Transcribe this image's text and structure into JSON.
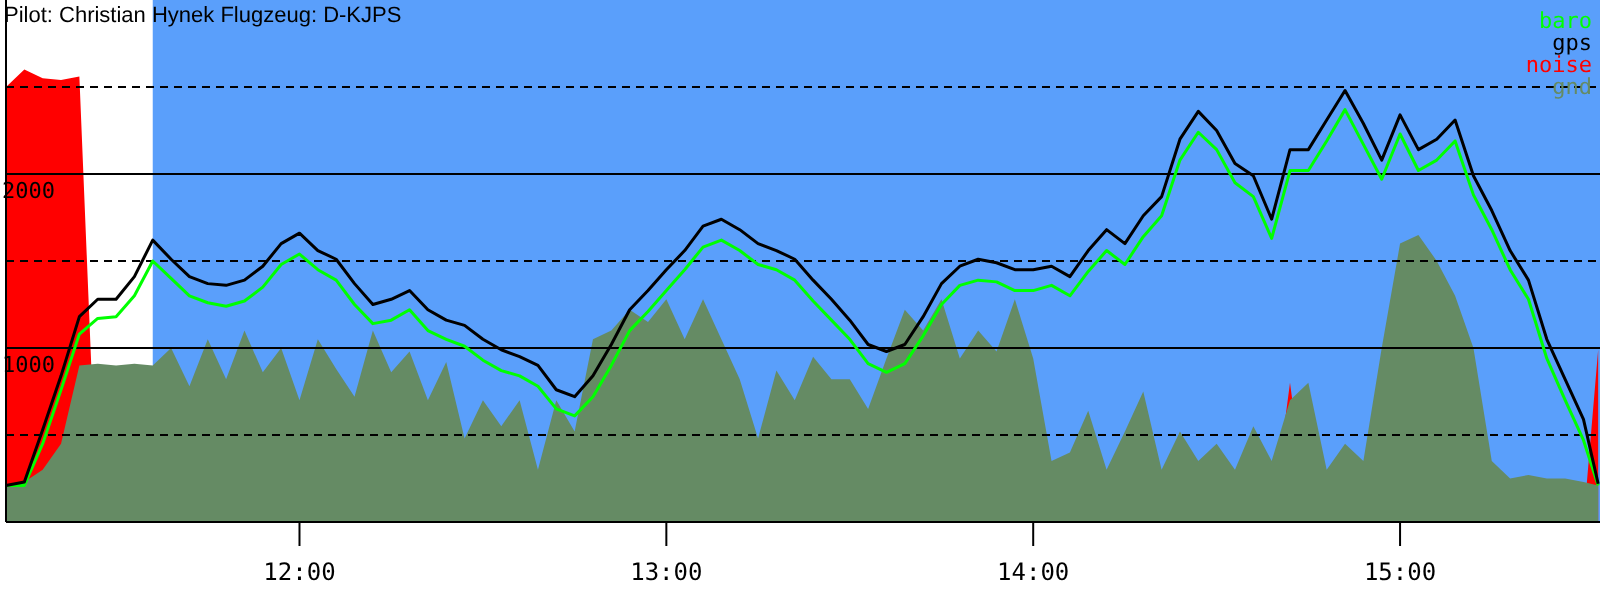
{
  "chart_data": {
    "type": "line",
    "title": "Pilot: Christian Hynek Flugzeug: D-KJPS",
    "x": [
      11.2,
      11.25,
      11.3,
      11.35,
      11.4,
      11.45,
      11.5,
      11.55,
      11.6,
      11.65,
      11.7,
      11.75,
      11.8,
      11.85,
      11.9,
      11.95,
      12.0,
      12.05,
      12.1,
      12.15,
      12.2,
      12.25,
      12.3,
      12.35,
      12.4,
      12.45,
      12.5,
      12.55,
      12.6,
      12.65,
      12.7,
      12.75,
      12.8,
      12.85,
      12.9,
      12.95,
      13.0,
      13.05,
      13.1,
      13.15,
      13.2,
      13.25,
      13.3,
      13.35,
      13.4,
      13.45,
      13.5,
      13.55,
      13.6,
      13.65,
      13.7,
      13.75,
      13.8,
      13.85,
      13.9,
      13.95,
      14.0,
      14.05,
      14.1,
      14.15,
      14.2,
      14.25,
      14.3,
      14.35,
      14.4,
      14.45,
      14.5,
      14.55,
      14.6,
      14.65,
      14.7,
      14.75,
      14.8,
      14.85,
      14.9,
      14.95,
      15.0,
      15.05,
      15.1,
      15.15,
      15.2,
      15.25,
      15.3,
      15.35,
      15.4,
      15.45,
      15.5,
      15.54
    ],
    "series": [
      {
        "name": "baro",
        "color": "#00ff00",
        "values": [
          210,
          210,
          450,
          760,
          1080,
          1170,
          1180,
          1300,
          1500,
          1400,
          1300,
          1260,
          1240,
          1270,
          1350,
          1480,
          1540,
          1450,
          1390,
          1250,
          1140,
          1160,
          1220,
          1100,
          1050,
          1010,
          930,
          870,
          840,
          780,
          650,
          610,
          720,
          900,
          1100,
          1210,
          1330,
          1450,
          1580,
          1620,
          1560,
          1480,
          1450,
          1390,
          1270,
          1160,
          1050,
          910,
          860,
          910,
          1070,
          1250,
          1360,
          1390,
          1380,
          1330,
          1330,
          1360,
          1300,
          1440,
          1560,
          1480,
          1640,
          1760,
          2080,
          2240,
          2140,
          1950,
          1870,
          1630,
          2020,
          2020,
          2190,
          2370,
          2170,
          1970,
          2230,
          2020,
          2080,
          2190,
          1880,
          1680,
          1450,
          1280,
          940,
          700,
          470,
          210
        ]
      },
      {
        "name": "gps",
        "color": "#000000",
        "values": [
          210,
          230,
          530,
          840,
          1180,
          1280,
          1280,
          1410,
          1620,
          1510,
          1410,
          1370,
          1360,
          1390,
          1470,
          1600,
          1660,
          1560,
          1510,
          1370,
          1250,
          1280,
          1330,
          1220,
          1160,
          1130,
          1050,
          990,
          950,
          900,
          760,
          720,
          840,
          1020,
          1220,
          1330,
          1450,
          1560,
          1700,
          1740,
          1680,
          1600,
          1560,
          1510,
          1390,
          1280,
          1160,
          1020,
          980,
          1020,
          1180,
          1370,
          1470,
          1510,
          1490,
          1450,
          1450,
          1470,
          1410,
          1560,
          1680,
          1600,
          1760,
          1870,
          2200,
          2360,
          2250,
          2060,
          1990,
          1740,
          2140,
          2140,
          2310,
          2480,
          2290,
          2080,
          2340,
          2140,
          2200,
          2310,
          1990,
          1790,
          1560,
          1390,
          1050,
          820,
          590,
          220
        ]
      },
      {
        "name": "noise",
        "type": "area",
        "color": "#ff0000",
        "values": [
          2500,
          2600,
          2550,
          2540,
          2560,
          0,
          0,
          0,
          0,
          0,
          0,
          0,
          0,
          0,
          0,
          0,
          0,
          0,
          0,
          0,
          0,
          0,
          0,
          0,
          0,
          0,
          0,
          0,
          0,
          0,
          0,
          0,
          0,
          0,
          0,
          0,
          0,
          0,
          0,
          0,
          0,
          0,
          0,
          0,
          0,
          0,
          0,
          0,
          0,
          0,
          0,
          0,
          0,
          0,
          0,
          0,
          0,
          0,
          0,
          0,
          0,
          0,
          0,
          0,
          0,
          0,
          0,
          0,
          0,
          0,
          800,
          0,
          0,
          0,
          0,
          0,
          0,
          0,
          0,
          0,
          0,
          0,
          0,
          0,
          0,
          0,
          0,
          990
        ]
      },
      {
        "name": "gnd",
        "type": "area",
        "color": "#658b64",
        "values": [
          210,
          230,
          300,
          450,
          900,
          910,
          900,
          910,
          900,
          1000,
          780,
          1050,
          820,
          1100,
          860,
          1000,
          700,
          1050,
          880,
          720,
          1100,
          860,
          980,
          700,
          920,
          480,
          700,
          550,
          700,
          300,
          700,
          520,
          1050,
          1100,
          1220,
          1150,
          1280,
          1050,
          1280,
          1050,
          820,
          480,
          870,
          700,
          950,
          820,
          820,
          650,
          940,
          1220,
          1100,
          1280,
          940,
          1100,
          980,
          1280,
          940,
          350,
          400,
          640,
          300,
          520,
          750,
          300,
          520,
          350,
          450,
          300,
          550,
          350,
          700,
          800,
          300,
          450,
          350,
          1000,
          1600,
          1650,
          1500,
          1300,
          1000,
          350,
          250,
          270,
          250,
          250,
          230,
          210
        ]
      }
    ],
    "xlim": [
      11.2,
      15.545
    ],
    "xticks": [
      {
        "value": 12,
        "label": "12:00"
      },
      {
        "value": 13,
        "label": "13:00"
      },
      {
        "value": 14,
        "label": "14:00"
      },
      {
        "value": 15,
        "label": "15:00"
      }
    ],
    "ylim": [
      0,
      3000
    ],
    "yticks": [
      {
        "value": 500,
        "label": null
      },
      1000,
      {
        "value": 1500,
        "label": null
      },
      2000,
      {
        "value": 2500,
        "label": null
      }
    ],
    "grid": "y",
    "legend": "top right",
    "bands": [
      {
        "axis": "x",
        "from": 11.6,
        "to": 15.545,
        "color": "#5a9ffb"
      }
    ]
  }
}
